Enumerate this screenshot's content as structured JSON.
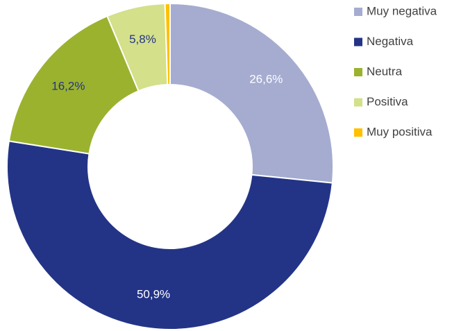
{
  "chart_data": {
    "type": "pie",
    "categories": [
      "Muy negativa",
      "Negativa",
      "Neutra",
      "Positiva",
      "Muy positiva"
    ],
    "values": [
      26.6,
      50.9,
      16.2,
      5.8,
      0.5
    ],
    "value_labels": [
      "26,6%",
      "50,9%",
      "16,2%",
      "5,8%",
      null
    ],
    "colors": [
      "#a5acd0",
      "#233487",
      "#9bb22f",
      "#d4e08a",
      "#ffc000"
    ],
    "donut": true,
    "legend": "right"
  }
}
